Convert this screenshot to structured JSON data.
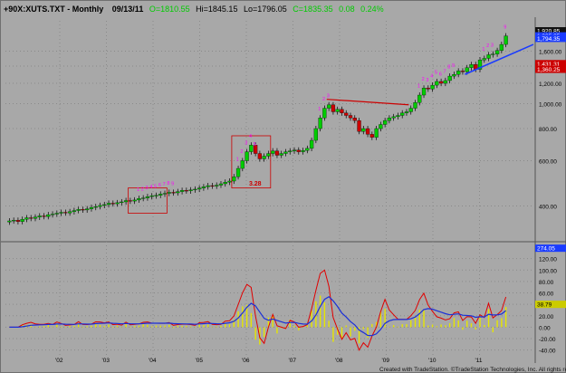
{
  "window": {
    "title": "+90X:XUTS.TXT - Monthly",
    "date": "09/13/11",
    "open": "O=1810.55",
    "high": "Hi=1845.15",
    "low": "Lo=1796.05",
    "close": "C=1835.35",
    "change": "0.08",
    "change_pct": "0.24%"
  },
  "footer": "Created with TradeStation. ©TradeStation Technologies, Inc. All rights reserved.",
  "colors": {
    "background": "#a8a8a8",
    "up_candle": "#00cc00",
    "down_candle": "#cc0000",
    "trendline_blue": "#1a3bff",
    "trendline_red": "#cc0000",
    "oscillator_red": "#e00000",
    "oscillator_blue": "#1a2fd8",
    "histogram": "#e6e600",
    "magenta_labels": "#ff00ff"
  },
  "chart_data": [
    {
      "type": "candlestick",
      "title": "",
      "scale": "log",
      "y_ticks": [
        "1,600.00",
        "1,400.00",
        "1,200.00",
        "1,000.00",
        "800.00",
        "600.00",
        "400.00"
      ],
      "x_ticks": [
        "'02",
        "'03",
        "'04",
        "'05",
        "'06",
        "'07",
        "'08",
        "'09",
        "'10",
        "'11"
      ],
      "price_badges": [
        {
          "label": "1,920.85",
          "color": "#111111",
          "value": 1920.85
        },
        {
          "label": "1,835.35",
          "color": "#1a3bff",
          "value": 1835.35
        },
        {
          "label": "1,794.35",
          "color": "#1a3bff",
          "value": 1794.35
        },
        {
          "label": "1,431.31",
          "color": "#cc0000",
          "value": 1431.31
        },
        {
          "label": "1,360.25",
          "color": "#cc0000",
          "value": 1360.25
        },
        {
          "label": "274.05",
          "color": "#1a3bff",
          "value": 274.05
        }
      ],
      "annotations": [
        {
          "text": "3.28",
          "color": "#cc0000"
        }
      ],
      "closes": [
        350,
        352,
        348,
        355,
        360,
        358,
        362,
        366,
        364,
        370,
        372,
        375,
        378,
        376,
        380,
        384,
        388,
        386,
        390,
        395,
        398,
        402,
        405,
        410,
        408,
        412,
        415,
        420,
        418,
        422,
        428,
        430,
        435,
        438,
        440,
        445,
        448,
        452,
        450,
        455,
        460,
        458,
        462,
        465,
        470,
        475,
        480,
        478,
        482,
        488,
        495,
        500,
        520,
        560,
        600,
        650,
        690,
        640,
        610,
        625,
        640,
        655,
        630,
        640,
        650,
        655,
        660,
        650,
        658,
        670,
        720,
        800,
        880,
        960,
        990,
        930,
        950,
        920,
        900,
        880,
        860,
        780,
        800,
        760,
        740,
        800,
        830,
        860,
        880,
        890,
        900,
        920,
        930,
        960,
        1010,
        1080,
        1150,
        1140,
        1180,
        1220,
        1200,
        1230,
        1280,
        1300,
        1340,
        1330,
        1380,
        1420,
        1360,
        1480,
        1500,
        1550,
        1560,
        1610,
        1700,
        1835
      ]
    },
    {
      "type": "line",
      "title": "",
      "y_ticks": [
        "120.00",
        "100.00",
        "80.00",
        "60.00",
        "40.00",
        "20.00",
        "0.00",
        "-20.00",
        "-40.00"
      ],
      "badges": [
        {
          "label": "38.79",
          "color": "#cccc00"
        }
      ]
    }
  ]
}
